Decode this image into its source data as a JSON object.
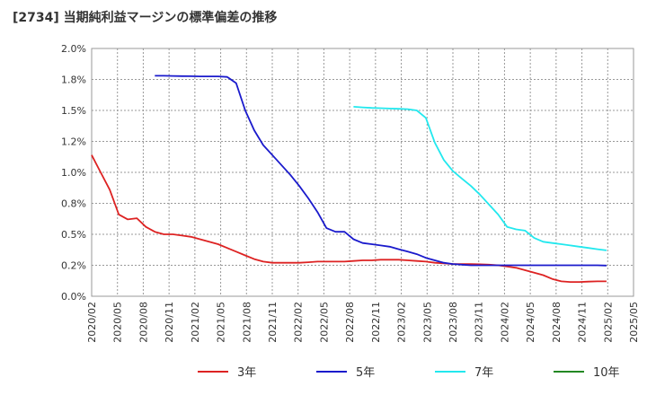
{
  "chart_data": {
    "type": "line",
    "title": "[2734]  当期純利益マージンの標準偏差の推移",
    "xlabel": "",
    "ylabel": "",
    "ylim": [
      0,
      2.0
    ],
    "y_ticks": [
      0,
      0.25,
      0.5,
      0.75,
      1.0,
      1.25,
      1.5,
      1.75,
      2.0
    ],
    "y_tick_labels": [
      "0.0%",
      "0.2%",
      "0.5%",
      "0.8%",
      "1.0%",
      "1.2%",
      "1.5%",
      "1.8%",
      "2.0%"
    ],
    "x_range": [
      0,
      60
    ],
    "x_tick_labels": [
      "2020/02",
      "2020/05",
      "2020/08",
      "2020/11",
      "2021/02",
      "2021/05",
      "2021/08",
      "2021/11",
      "2022/02",
      "2022/05",
      "2022/08",
      "2022/11",
      "2023/02",
      "2023/05",
      "2023/08",
      "2023/11",
      "2024/02",
      "2024/05",
      "2024/08",
      "2024/11",
      "2025/02",
      "2025/05"
    ],
    "grid": true,
    "legend_position": "bottom",
    "series": [
      {
        "name": "3年",
        "color": "#dd2222",
        "x": [
          0,
          1,
          2,
          3,
          4,
          5,
          6,
          7,
          8,
          9,
          10,
          11,
          12,
          13,
          14,
          15,
          16,
          17,
          18,
          19,
          20,
          21,
          22,
          23,
          24,
          25,
          26,
          27,
          28,
          29,
          30,
          31,
          32,
          33,
          34,
          35,
          36,
          37,
          38,
          39,
          40,
          41,
          42,
          43,
          44,
          45,
          46,
          47,
          48,
          49,
          50,
          51,
          52,
          53,
          54,
          55,
          56,
          57
        ],
        "values": [
          1.14,
          1.0,
          0.86,
          0.66,
          0.62,
          0.63,
          0.56,
          0.52,
          0.5,
          0.5,
          0.49,
          0.48,
          0.46,
          0.44,
          0.42,
          0.39,
          0.36,
          0.33,
          0.3,
          0.28,
          0.27,
          0.27,
          0.27,
          0.27,
          0.275,
          0.28,
          0.28,
          0.28,
          0.28,
          0.285,
          0.29,
          0.29,
          0.295,
          0.295,
          0.295,
          0.29,
          0.285,
          0.28,
          0.27,
          0.265,
          0.26,
          0.26,
          0.26,
          0.258,
          0.255,
          0.25,
          0.24,
          0.23,
          0.21,
          0.19,
          0.17,
          0.14,
          0.12,
          0.115,
          0.115,
          0.118,
          0.12,
          0.12
        ]
      },
      {
        "name": "5年",
        "color": "#1a1acc",
        "x": [
          7,
          8,
          9,
          10,
          11,
          12,
          13,
          14,
          15,
          16,
          17,
          18,
          19,
          20,
          21,
          22,
          23,
          24,
          25,
          26,
          27,
          28,
          29,
          30,
          31,
          32,
          33,
          34,
          35,
          36,
          37,
          38,
          39,
          40,
          41,
          42,
          43,
          44,
          45,
          46,
          47,
          48,
          49,
          50,
          51,
          52,
          53,
          54,
          55,
          56,
          57
        ],
        "values": [
          1.78,
          1.78,
          1.778,
          1.777,
          1.776,
          1.775,
          1.775,
          1.775,
          1.77,
          1.72,
          1.5,
          1.34,
          1.22,
          1.14,
          1.06,
          0.98,
          0.89,
          0.79,
          0.68,
          0.55,
          0.52,
          0.52,
          0.46,
          0.43,
          0.42,
          0.41,
          0.4,
          0.38,
          0.36,
          0.34,
          0.31,
          0.29,
          0.27,
          0.26,
          0.255,
          0.25,
          0.25,
          0.25,
          0.25,
          0.25,
          0.25,
          0.25,
          0.25,
          0.25,
          0.25,
          0.25,
          0.25,
          0.25,
          0.25,
          0.25,
          0.248
        ]
      },
      {
        "name": "7年",
        "color": "#22e8ee",
        "x": [
          29,
          30,
          31,
          32,
          33,
          34,
          35,
          36,
          37,
          38,
          39,
          40,
          41,
          42,
          43,
          44,
          45,
          46,
          47,
          48,
          49,
          50,
          51,
          52,
          53,
          54,
          55,
          56,
          57
        ],
        "values": [
          1.53,
          1.525,
          1.52,
          1.518,
          1.515,
          1.513,
          1.51,
          1.5,
          1.44,
          1.24,
          1.1,
          1.01,
          0.95,
          0.89,
          0.82,
          0.74,
          0.66,
          0.56,
          0.54,
          0.53,
          0.47,
          0.44,
          0.43,
          0.42,
          0.41,
          0.4,
          0.39,
          0.38,
          0.37
        ]
      },
      {
        "name": "10年",
        "color": "#228822",
        "x": [],
        "values": []
      }
    ]
  }
}
